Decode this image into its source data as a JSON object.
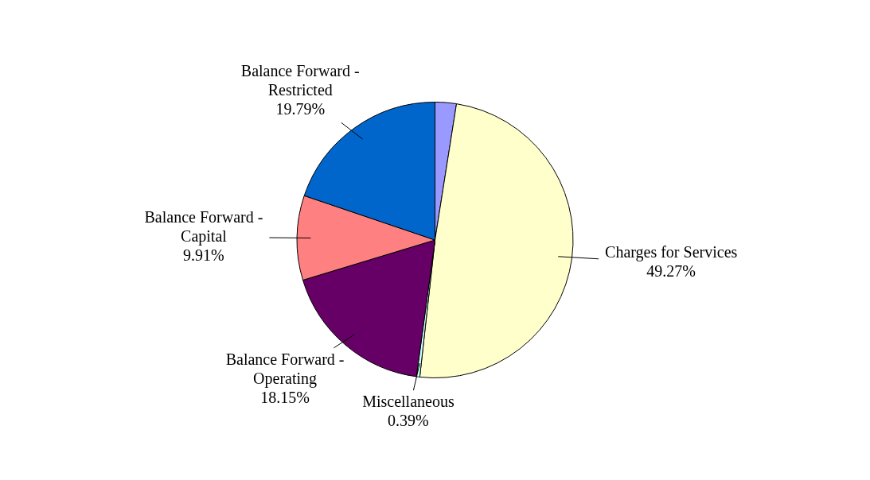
{
  "chart_data": {
    "type": "pie",
    "categories": [
      null,
      "Charges for Services",
      "Miscellaneous",
      "Balance Forward - Operating",
      "Balance Forward - Capital",
      "Balance Forward - Restricted"
    ],
    "values": [
      2.49,
      49.27,
      0.39,
      18.15,
      9.91,
      19.79
    ],
    "value_labels": [
      null,
      "49.27%",
      "0.39%",
      "18.15%",
      "9.91%",
      "19.79%"
    ],
    "colors": [
      "#9999ff",
      "#ffffcc",
      "#ccffff",
      "#660066",
      "#ff8080",
      "#0066cc"
    ],
    "legend": false
  }
}
